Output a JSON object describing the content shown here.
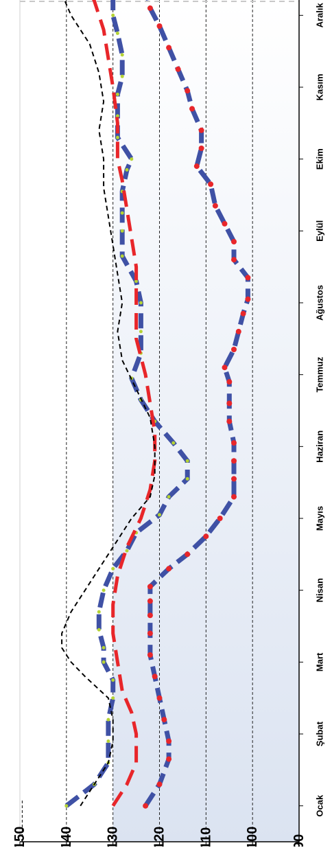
{
  "chart_data": {
    "type": "line",
    "orientation": "rotated-90-clockwise",
    "title": "",
    "xlabel": "",
    "ylabel": "",
    "categories": [
      "Ocak",
      "Şubat",
      "Mart",
      "Nisan",
      "Mayıs",
      "Haziran",
      "Temmuz",
      "Ağustos",
      "Eylül",
      "Ekim",
      "Kasım",
      "Aralık"
    ],
    "y_ticks": [
      "90",
      "100",
      "110",
      "120",
      "130",
      "140",
      "150"
    ],
    "ylim": [
      90,
      150
    ],
    "x_range": [
      0.5,
      12.5
    ],
    "grid": "horizontal dashed lines at 100, 110, 120, 130, 140",
    "background_band": {
      "from": 90,
      "to": 130,
      "color": "#dbe3f1"
    },
    "series": [
      {
        "style": "blue dashed with yellow-green dots",
        "color": "#3f51a5",
        "dot_color": "#b5d334",
        "points": [
          [
            1,
            140
          ],
          [
            1.3,
            134
          ],
          [
            1.6,
            131
          ],
          [
            1.9,
            131
          ],
          [
            2.2,
            131
          ],
          [
            2.5,
            130
          ],
          [
            2.75,
            130
          ],
          [
            3.0,
            132
          ],
          [
            3.2,
            132
          ],
          [
            3.45,
            133
          ],
          [
            3.7,
            133
          ],
          [
            4.0,
            132
          ],
          [
            4.3,
            130
          ],
          [
            4.55,
            127
          ],
          [
            4.8,
            125
          ],
          [
            5.05,
            120
          ],
          [
            5.3,
            118
          ],
          [
            5.55,
            114
          ],
          [
            5.8,
            114
          ],
          [
            6.05,
            117
          ],
          [
            6.35,
            121
          ],
          [
            6.65,
            124
          ],
          [
            6.95,
            126
          ],
          [
            7.3,
            124
          ],
          [
            7.6,
            124
          ],
          [
            8.0,
            124
          ],
          [
            8.3,
            125
          ],
          [
            8.65,
            128
          ],
          [
            9.0,
            128
          ],
          [
            9.25,
            128
          ],
          [
            9.55,
            128
          ],
          [
            9.85,
            127
          ],
          [
            10.0,
            126
          ],
          [
            10.3,
            129
          ],
          [
            10.6,
            129
          ],
          [
            10.9,
            129
          ],
          [
            11.15,
            128
          ],
          [
            11.45,
            128
          ],
          [
            11.75,
            129
          ],
          [
            12.0,
            130
          ],
          [
            12.3,
            130
          ],
          [
            12.55,
            130
          ]
        ]
      },
      {
        "style": "blue dashed with red dots",
        "color": "#3f51a5",
        "dot_color": "#e8262a",
        "points": [
          [
            1,
            123
          ],
          [
            1.3,
            120
          ],
          [
            1.65,
            118
          ],
          [
            1.9,
            118
          ],
          [
            2.2,
            119
          ],
          [
            2.5,
            120
          ],
          [
            2.8,
            121
          ],
          [
            3.1,
            122
          ],
          [
            3.4,
            122
          ],
          [
            3.65,
            122
          ],
          [
            3.85,
            122
          ],
          [
            4.05,
            122
          ],
          [
            4.3,
            118
          ],
          [
            4.5,
            114
          ],
          [
            4.75,
            110
          ],
          [
            5.0,
            107
          ],
          [
            5.3,
            104
          ],
          [
            5.55,
            104
          ],
          [
            5.8,
            104
          ],
          [
            6.05,
            104
          ],
          [
            6.35,
            105
          ],
          [
            6.6,
            105
          ],
          [
            6.9,
            105
          ],
          [
            7.1,
            106
          ],
          [
            7.35,
            104
          ],
          [
            7.6,
            103
          ],
          [
            7.85,
            102
          ],
          [
            8.05,
            101
          ],
          [
            8.35,
            101
          ],
          [
            8.6,
            104
          ],
          [
            8.85,
            104
          ],
          [
            9.1,
            106
          ],
          [
            9.35,
            108
          ],
          [
            9.65,
            109
          ],
          [
            9.9,
            112
          ],
          [
            10.15,
            111
          ],
          [
            10.4,
            111
          ],
          [
            10.7,
            113
          ],
          [
            10.95,
            114
          ],
          [
            11.25,
            116
          ],
          [
            11.55,
            118
          ],
          [
            11.85,
            120
          ],
          [
            12.1,
            122
          ],
          [
            12.4,
            123
          ],
          [
            12.6,
            124
          ]
        ]
      },
      {
        "style": "red long-dashed",
        "color": "#e8262a",
        "points": [
          [
            1,
            130
          ],
          [
            1.3,
            127
          ],
          [
            1.6,
            125
          ],
          [
            2.0,
            125
          ],
          [
            2.3,
            126
          ],
          [
            2.6,
            128
          ],
          [
            3.0,
            129
          ],
          [
            3.4,
            130
          ],
          [
            3.8,
            130
          ],
          [
            4.2,
            129
          ],
          [
            4.6,
            127
          ],
          [
            5.0,
            124
          ],
          [
            5.4,
            122
          ],
          [
            5.8,
            121
          ],
          [
            6.2,
            121
          ],
          [
            6.6,
            122
          ],
          [
            7.0,
            123
          ],
          [
            7.5,
            125
          ],
          [
            8.0,
            125
          ],
          [
            8.5,
            125
          ],
          [
            8.9,
            126
          ],
          [
            9.3,
            127
          ],
          [
            9.7,
            128
          ],
          [
            10.0,
            129
          ],
          [
            10.5,
            129
          ],
          [
            11.0,
            130
          ],
          [
            11.4,
            131
          ],
          [
            11.8,
            132
          ],
          [
            12.2,
            134
          ],
          [
            12.6,
            137
          ]
        ]
      },
      {
        "style": "black short-dashed",
        "color": "#000000",
        "points": [
          [
            1,
            137
          ],
          [
            1.3,
            134
          ],
          [
            1.6,
            131
          ],
          [
            1.9,
            130
          ],
          [
            2.2,
            130
          ],
          [
            2.5,
            131
          ],
          [
            2.8,
            136
          ],
          [
            3.0,
            139
          ],
          [
            3.2,
            141
          ],
          [
            3.4,
            141
          ],
          [
            3.7,
            139
          ],
          [
            4.0,
            136
          ],
          [
            4.3,
            133
          ],
          [
            4.6,
            130
          ],
          [
            5.0,
            126
          ],
          [
            5.3,
            122
          ],
          [
            5.6,
            121
          ],
          [
            6.0,
            121
          ],
          [
            6.4,
            122
          ],
          [
            6.8,
            125
          ],
          [
            7.2,
            128
          ],
          [
            7.6,
            129
          ],
          [
            8.0,
            128
          ],
          [
            8.4,
            129
          ],
          [
            8.8,
            130
          ],
          [
            9.2,
            131
          ],
          [
            9.6,
            132
          ],
          [
            10.0,
            132
          ],
          [
            10.4,
            133
          ],
          [
            10.8,
            132
          ],
          [
            11.2,
            133
          ],
          [
            11.6,
            135
          ],
          [
            12.0,
            139
          ],
          [
            12.3,
            141
          ],
          [
            12.6,
            143
          ]
        ]
      }
    ]
  }
}
